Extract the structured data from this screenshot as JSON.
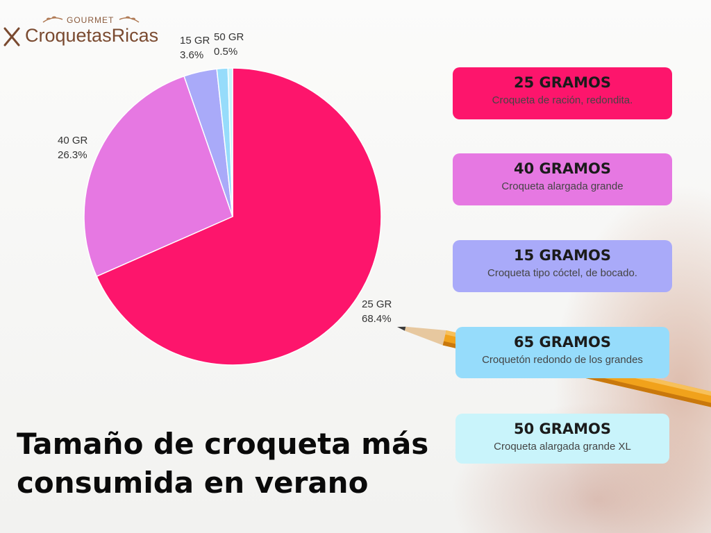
{
  "logo": {
    "top": "GOURMET",
    "brand": "CroquetasRicas"
  },
  "title_line1": "Tamaño de croqueta más",
  "title_line2": "consumida en verano",
  "chart_data": {
    "type": "pie",
    "title": "",
    "slices": [
      {
        "label": "25 GR",
        "pct_label": "68.4%",
        "value": 68.4,
        "color": "#fd156c"
      },
      {
        "label": "40 GR",
        "pct_label": "26.3%",
        "value": 26.3,
        "color": "#e678e2"
      },
      {
        "label": "15 GR",
        "pct_label": "3.6%",
        "value": 3.6,
        "color": "#a9aaf9"
      },
      {
        "label": "65 GR",
        "pct_label": "",
        "value": 1.2,
        "color": "#96dcfb"
      },
      {
        "label": "50 GR",
        "pct_label": "0.5%",
        "value": 0.5,
        "color": "#c9f4fb"
      }
    ]
  },
  "cards": [
    {
      "title": "25 GRAMOS",
      "desc": "Croqueta de ración, redondita.",
      "color": "#fd156c"
    },
    {
      "title": "40 GRAMOS",
      "desc": "Croqueta alargada grande",
      "color": "#e678e2"
    },
    {
      "title": "15 GRAMOS",
      "desc": "Croqueta tipo cóctel, de bocado.",
      "color": "#a9aaf9"
    },
    {
      "title": "65 GRAMOS",
      "desc": "Croquetón redondo de los grandes",
      "color": "#96dcfb"
    },
    {
      "title": "50 GRAMOS",
      "desc": "Croqueta alargada grande XL",
      "color": "#c9f4fb"
    }
  ]
}
